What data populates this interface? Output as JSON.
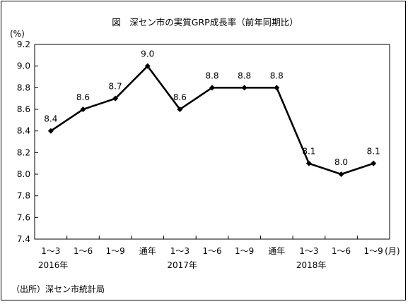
{
  "chart_data": {
    "type": "line",
    "title": "図　深セン市の実質GRP成長率（前年同期比）",
    "y_unit_label": "(%)",
    "ylim": [
      7.4,
      9.2
    ],
    "y_ticks": [
      "9.2",
      "9.0",
      "8.8",
      "8.6",
      "8.4",
      "8.2",
      "8.0",
      "7.8",
      "7.6",
      "7.4"
    ],
    "y_tick_values": [
      9.2,
      9.0,
      8.8,
      8.6,
      8.4,
      8.2,
      8.0,
      7.8,
      7.6,
      7.4
    ],
    "categories": [
      "1～3",
      "1～6",
      "1～9",
      "通年",
      "1～3",
      "1～6",
      "1～9",
      "通年",
      "1～3",
      "1～6",
      "1～9"
    ],
    "x_unit_label": "(月)",
    "year_labels": [
      {
        "label": "2016年",
        "start_index": 0
      },
      {
        "label": "2017年",
        "start_index": 4
      },
      {
        "label": "2018年",
        "start_index": 8
      }
    ],
    "series": [
      {
        "values": [
          8.4,
          8.6,
          8.7,
          9.0,
          8.6,
          8.8,
          8.8,
          8.8,
          8.1,
          8.0,
          8.1
        ],
        "data_labels": [
          "8.4",
          "8.6",
          "8.7",
          "9.0",
          "8.6",
          "8.8",
          "8.8",
          "8.8",
          "8.1",
          "8.0",
          "8.1"
        ]
      }
    ],
    "grid": false,
    "legend": "none",
    "line_color": "#000000"
  },
  "source_note": "（出所）深セン市統計局"
}
